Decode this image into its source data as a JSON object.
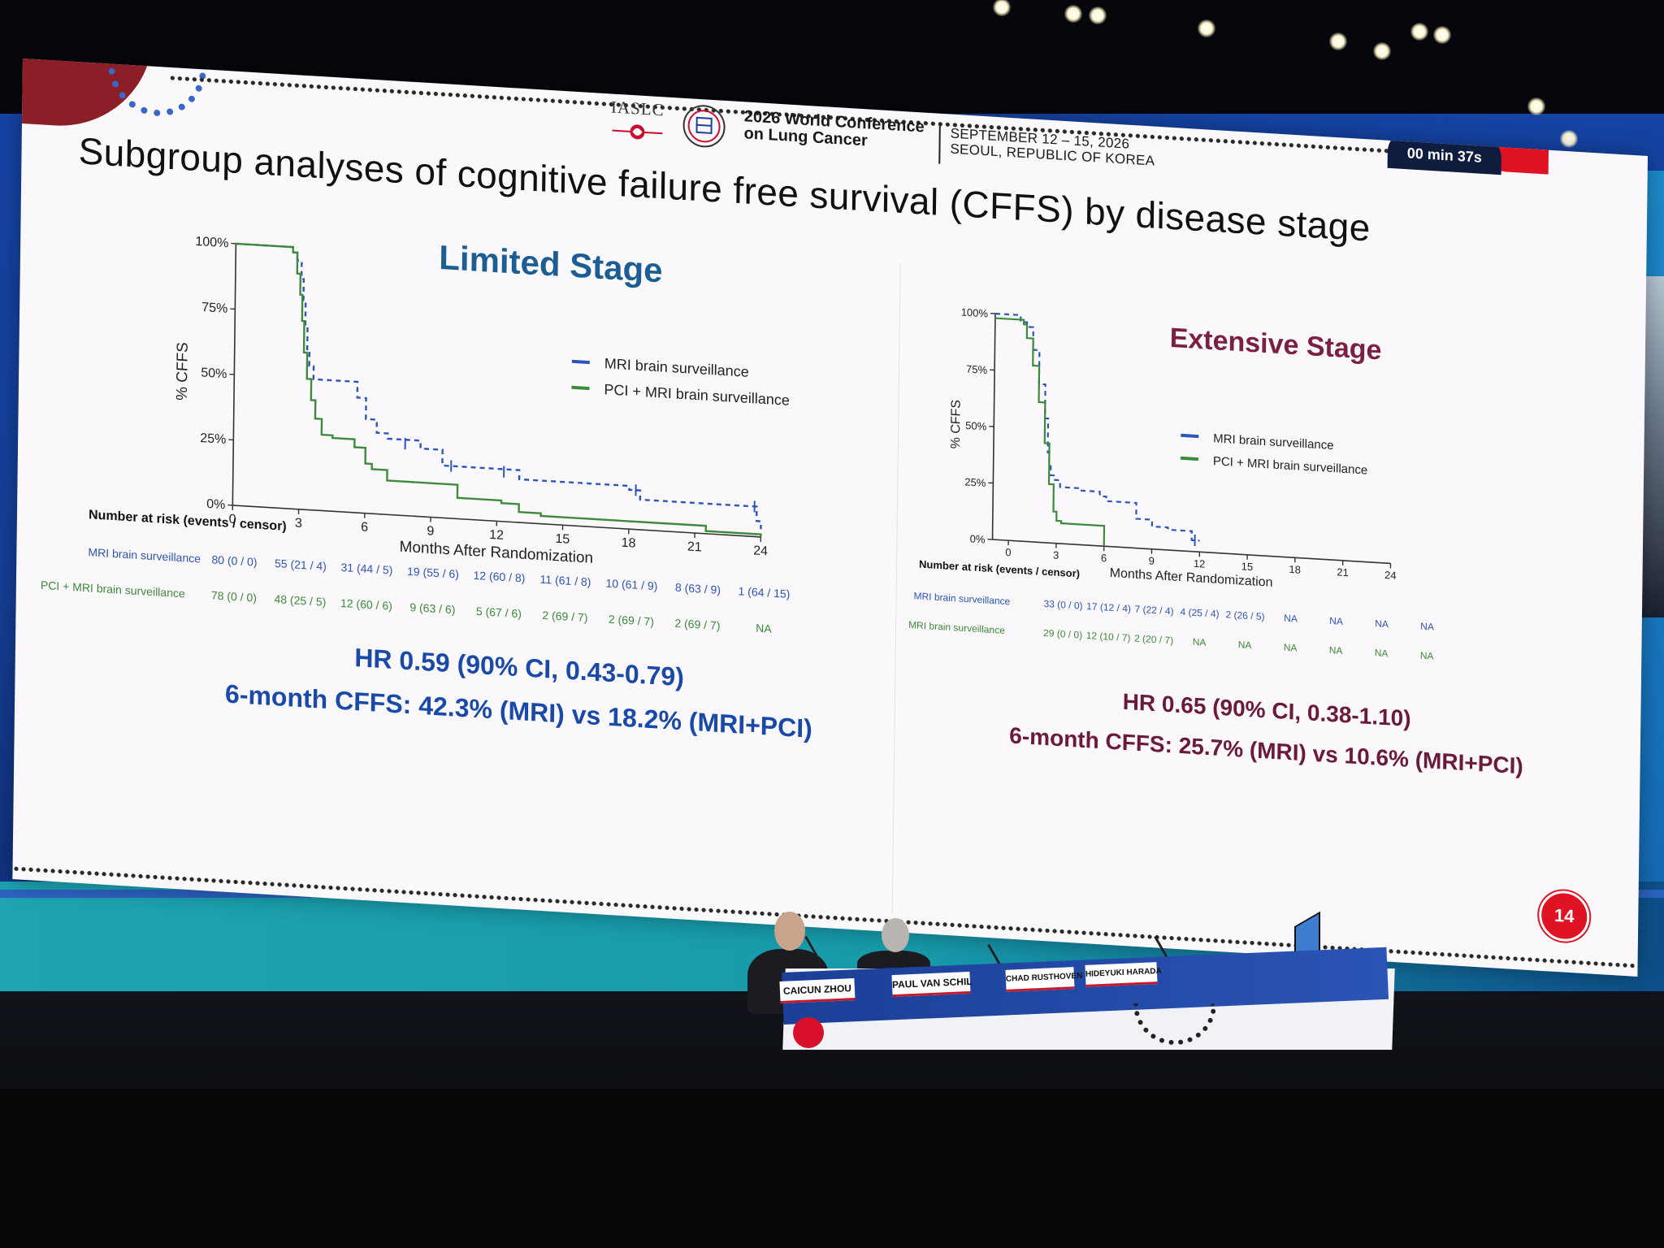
{
  "conference": {
    "org": "IASLC",
    "name_line1": "2026 World Conference",
    "name_line2": "on Lung Cancer",
    "date_line1": "SEPTEMBER 12 – 15, 2026",
    "date_line2": "SEOUL, REPUBLIC OF KOREA"
  },
  "timer": "00 min 37s",
  "slide_title": "Subgroup analyses of cognitive failure free survival (CFFS) by disease stage",
  "slide_number": "14",
  "colors": {
    "mri": "#2a56b8",
    "pci": "#3c8a3a",
    "limited_title": "#1c5e93",
    "extensive_title": "#7a2040"
  },
  "chart_data": [
    {
      "type": "line",
      "title": "Limited Stage",
      "xlabel": "Months After Randomization",
      "ylabel": "% CFFS",
      "xlim": [
        0,
        24
      ],
      "ylim": [
        0,
        100
      ],
      "xticks": [
        "0",
        "3",
        "6",
        "9",
        "12",
        "15",
        "18",
        "21",
        "24"
      ],
      "yticks": [
        "0%",
        "25%",
        "50%",
        "75%",
        "100%"
      ],
      "legend_position": "center-right",
      "series": [
        {
          "name": "MRI brain surveillance",
          "style": "dashed",
          "x": [
            0,
            2.6,
            2.8,
            3.0,
            3.1,
            3.2,
            3.3,
            3.4,
            3.6,
            4.0,
            5.2,
            5.6,
            6.0,
            6.5,
            7.0,
            8.5,
            9.5,
            12.0,
            13.0,
            18.0,
            18.5,
            23.5,
            23.8,
            24.0
          ],
          "y": [
            100,
            98,
            95,
            88,
            80,
            70,
            60,
            55,
            50,
            50,
            50,
            44,
            36,
            31,
            29,
            26,
            20,
            20,
            16.5,
            15,
            11.5,
            11.5,
            6,
            3
          ],
          "censor_x": [
            7.8,
            9.9,
            12.3,
            18.3,
            23.7
          ],
          "censor_y": [
            27.5,
            20,
            19,
            15,
            11.5
          ]
        },
        {
          "name": "PCI + MRI brain surveillance",
          "style": "solid",
          "x": [
            0,
            2.6,
            2.8,
            2.95,
            3.05,
            3.15,
            3.3,
            3.5,
            3.7,
            4.0,
            4.5,
            5.5,
            6.0,
            6.3,
            7.0,
            10.0,
            10.2,
            12.2,
            13.0,
            14.0,
            20.0,
            21.5,
            24.0
          ],
          "y": [
            100,
            98,
            90,
            82,
            72,
            60,
            50,
            42,
            35,
            29,
            28,
            25,
            19,
            17,
            13,
            13,
            8,
            7,
            4,
            3,
            3,
            1,
            0
          ]
        }
      ],
      "risk_table": {
        "title": "Number at risk (events / censor)",
        "rows": [
          {
            "label": "MRI brain surveillance",
            "values": [
              "80 (0 / 0)",
              "55 (21 / 4)",
              "31 (44 / 5)",
              "19 (55 / 6)",
              "12 (60 / 8)",
              "11 (61 / 8)",
              "10 (61 / 9)",
              "8 (63 / 9)",
              "1 (64 / 15)"
            ]
          },
          {
            "label": "PCI + MRI brain surveillance",
            "values": [
              "78 (0 / 0)",
              "48 (25 / 5)",
              "12 (60 / 6)",
              "9 (63 / 6)",
              "5 (67 / 6)",
              "2 (69 / 7)",
              "2 (69 / 7)",
              "2 (69 / 7)",
              "NA"
            ]
          }
        ]
      },
      "hr_text": "HR 0.59 (90% CI, 0.43-0.79)",
      "cffs_text": "6-month CFFS: 42.3% (MRI) vs 18.2% (MRI+PCI)"
    },
    {
      "type": "line",
      "title": "Extensive Stage",
      "xlabel": "Months After Randomization",
      "ylabel": "% CFFS",
      "xlim": [
        -1,
        24
      ],
      "ylim": [
        0,
        100
      ],
      "xticks": [
        "0",
        "3",
        "6",
        "9",
        "12",
        "15",
        "18",
        "21",
        "24"
      ],
      "yticks": [
        "0%",
        "25%",
        "50%",
        "75%",
        "100%"
      ],
      "legend_position": "center-right",
      "series": [
        {
          "name": "MRI brain surveillance",
          "style": "dashed",
          "x": [
            -1,
            0.5,
            0.6,
            1.0,
            1.4,
            1.8,
            2.2,
            2.4,
            2.5,
            2.6,
            2.8,
            3.2,
            4.4,
            5.7,
            6.1,
            7.5,
            8.0,
            9.0,
            10.0,
            11.5,
            12.0
          ],
          "y": [
            100,
            100,
            97,
            95,
            85,
            70,
            55,
            40,
            34,
            30,
            28,
            25,
            24,
            22,
            20,
            20,
            13,
            10,
            9,
            5,
            5
          ],
          "censor_x": [
            11.7
          ],
          "censor_y": [
            5
          ]
        },
        {
          "name": "PCI + MRI brain surveillance",
          "style": "solid",
          "x": [
            -1,
            0.6,
            0.8,
            1.0,
            1.4,
            1.8,
            2.2,
            2.5,
            2.8,
            3.0,
            3.3,
            5.5,
            6.0
          ],
          "y": [
            98,
            98,
            96,
            90,
            78,
            62,
            44,
            26,
            14,
            10,
            9,
            9,
            0
          ]
        }
      ],
      "risk_table": {
        "title": "Number at risk (events / censor)",
        "rows": [
          {
            "label": "MRI brain surveillance",
            "values": [
              "33 (0 / 0)",
              "17 (12 / 4)",
              "7 (22 / 4)",
              "4 (25 / 4)",
              "2 (26 / 5)",
              "NA",
              "NA",
              "NA",
              "NA"
            ]
          },
          {
            "label": "MRI brain surveillance",
            "values": [
              "29 (0 / 0)",
              "12 (10 / 7)",
              "2 (20 / 7)",
              "NA",
              "NA",
              "NA",
              "NA",
              "NA",
              "NA"
            ]
          }
        ]
      },
      "hr_text": "HR 0.65 (90% CI, 0.38-1.10)",
      "cffs_text": "6-month CFFS: 25.7% (MRI) vs 10.6% (MRI+PCI)"
    }
  ],
  "panel": {
    "nameplates": [
      "CAICUN ZHOU",
      "PAUL VAN SCHIL",
      "CHAD RUSTHOVEN",
      "HIDEYUKI HARADA"
    ]
  }
}
